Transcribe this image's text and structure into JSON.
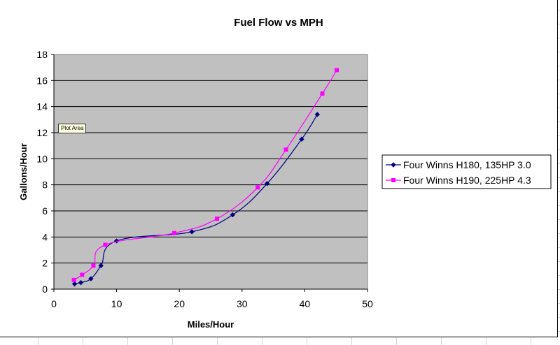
{
  "chart_data": {
    "type": "line",
    "title": "Fuel Flow vs MPH",
    "xlabel": "Miles/Hour",
    "ylabel": "Gallons/Hour",
    "xlim": [
      0,
      50
    ],
    "ylim": [
      0,
      18
    ],
    "xticks": [
      "0",
      "10",
      "20",
      "30",
      "40",
      "50"
    ],
    "yticks": [
      "0",
      "2",
      "4",
      "6",
      "8",
      "10",
      "12",
      "14",
      "16",
      "18"
    ],
    "grid": "horizontal",
    "legend": "right",
    "plot_background": "#c0c0c0",
    "series": [
      {
        "name": "Four Winns H180, 135HP 3.0",
        "color": "#000080",
        "marker": "diamond",
        "points": [
          [
            3.3,
            0.4
          ],
          [
            4.3,
            0.5
          ],
          [
            5.9,
            0.8
          ],
          [
            7.5,
            1.8
          ],
          [
            10.0,
            3.7
          ],
          [
            22.0,
            4.4
          ],
          [
            28.5,
            5.7
          ],
          [
            34.0,
            8.1
          ],
          [
            39.5,
            11.5
          ],
          [
            42.0,
            13.4
          ]
        ]
      },
      {
        "name": "Four Winns H190, 225HP 4.3",
        "color": "#ff00ff",
        "marker": "square",
        "points": [
          [
            3.2,
            0.7
          ],
          [
            4.5,
            1.1
          ],
          [
            6.3,
            1.8
          ],
          [
            8.2,
            3.4
          ],
          [
            19.2,
            4.3
          ],
          [
            26.0,
            5.4
          ],
          [
            32.5,
            7.8
          ],
          [
            37.0,
            10.7
          ],
          [
            42.8,
            15.0
          ],
          [
            45.1,
            16.8
          ]
        ]
      }
    ]
  },
  "tooltip": {
    "text": "Plot Area"
  }
}
